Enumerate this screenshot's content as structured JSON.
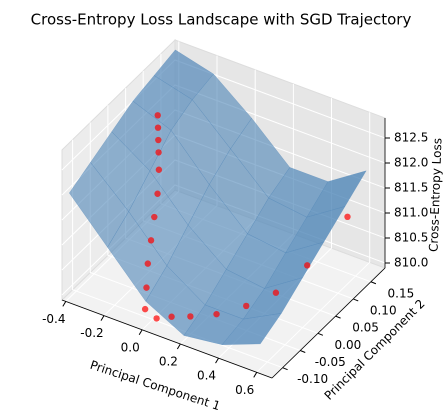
{
  "chart_data": {
    "type": "surface",
    "title": "Cross-Entropy Loss Landscape with SGD Trajectory",
    "xlabel": "Principal Component 1",
    "ylabel": "Principal Component 2",
    "zlabel": "Cross-Entropy Loss",
    "xlim": [
      -0.42,
      0.68
    ],
    "ylim": [
      -0.13,
      0.19
    ],
    "zlim": [
      809.9,
      812.9
    ],
    "xticks": [
      -0.4,
      -0.2,
      {
        "value": 0,
        "label": "0.0"
      },
      0.2,
      0.4,
      0.6
    ],
    "yticks": [
      {
        "value": -0.1,
        "label": "-0.10"
      },
      -0.05,
      {
        "value": 0,
        "label": "0.00"
      },
      0.05,
      {
        "value": 0.1,
        "label": "0.10"
      },
      0.15
    ],
    "zticks": [
      {
        "value": 810,
        "label": "810.0"
      },
      810.5,
      {
        "value": 811,
        "label": "811.0"
      },
      811.5,
      {
        "value": 812,
        "label": "812.0"
      },
      812.5
    ],
    "grid": true,
    "surface": {
      "color": "#4f86b8",
      "x": [
        -0.4,
        -0.2,
        0,
        0.2,
        0.4,
        0.6
      ],
      "y": [
        -0.12,
        -0.06,
        0,
        0.06,
        0.12,
        0.18
      ],
      "z": [
        [
          812.0,
          811.2,
          810.4,
          810.0,
          810.1,
          810.4
        ],
        [
          812.2,
          811.5,
          810.7,
          810.2,
          810.2,
          810.6
        ],
        [
          812.4,
          811.9,
          811.1,
          810.5,
          810.4,
          810.9
        ],
        [
          812.6,
          812.3,
          811.5,
          810.8,
          810.7,
          811.2
        ],
        [
          812.7,
          812.5,
          811.8,
          811.1,
          811.0,
          811.5
        ],
        [
          812.8,
          812.6,
          812.0,
          811.3,
          811.3,
          811.8
        ]
      ]
    },
    "series": [
      {
        "color": "#ff0000",
        "x": [
          -0.27,
          -0.25,
          -0.23,
          -0.21,
          -0.19,
          -0.16,
          -0.14,
          -0.12,
          -0.1,
          -0.07,
          -0.04,
          0.02,
          0.08,
          0.16,
          0.26,
          0.36,
          0.46,
          0.55,
          0.65
        ],
        "y": [
          0.06,
          0.05,
          0.04,
          0.03,
          0.02,
          0.0,
          -0.02,
          -0.04,
          -0.06,
          -0.08,
          -0.1,
          -0.1,
          -0.09,
          -0.08,
          -0.06,
          -0.03,
          0.0,
          0.04,
          0.1
        ],
        "z": [
          812.5,
          812.35,
          812.2,
          812.05,
          811.8,
          811.5,
          811.2,
          810.9,
          810.6,
          810.3,
          810.05,
          809.95,
          810.0,
          810.05,
          810.1,
          810.2,
          810.4,
          810.8,
          811.5
        ]
      }
    ]
  }
}
